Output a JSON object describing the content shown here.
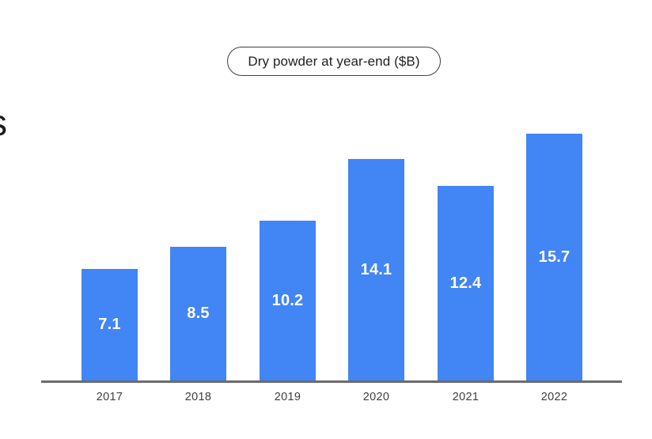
{
  "page": {
    "background": "#ffffff",
    "clipped_heading_fragment": "s"
  },
  "chart_badge": {
    "label": "Dry powder at year-end ($B)"
  },
  "chart_data": {
    "type": "bar",
    "title": "Dry powder at year-end ($B)",
    "categories": [
      "2017",
      "2018",
      "2019",
      "2020",
      "2021",
      "2022"
    ],
    "values": [
      7.1,
      8.5,
      10.2,
      14.1,
      12.4,
      15.7
    ],
    "value_labels_position": "inside-center",
    "bar_color": "#4285F4",
    "value_label_color": "#ffffff",
    "axis_line_color": "#6b6b6b",
    "tick_label_color": "#3c4043",
    "xlabel": "",
    "ylabel": "",
    "ylim": [
      0,
      17
    ],
    "grid": false,
    "legend": "none"
  }
}
